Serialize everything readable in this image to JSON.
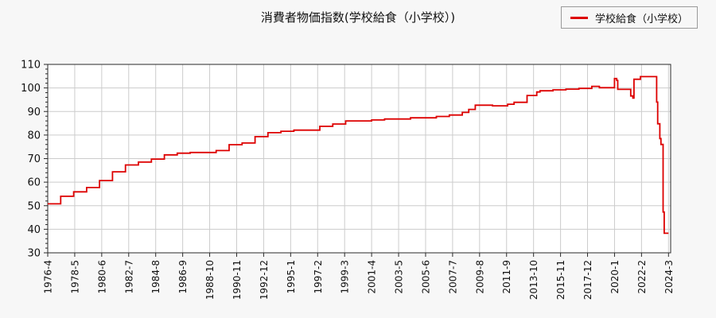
{
  "page": {
    "title": "消費者物価指数(学校給食（小学校）)"
  },
  "legend": {
    "label": "学校給食（小学校）"
  },
  "colors": {
    "line": "#dd0000",
    "grid": "#cccccc",
    "spine": "#2a2a2a",
    "tick": "#2a2a2a",
    "plot_bg": "#ffffff",
    "page_bg": "#f7f7f7",
    "legend_border": "#9a9a9a",
    "text": "#111111"
  },
  "chart_data": {
    "type": "line",
    "line_style": "step-post",
    "title": "消費者物価指数(学校給食（小学校）)",
    "legend_entries": [
      "学校給食（小学校）"
    ],
    "xlabel": "",
    "ylabel": "",
    "grid": true,
    "legend_position": "top-right",
    "ylim": [
      30,
      110
    ],
    "xlim": [
      "1976-4",
      "2024-3"
    ],
    "y_ticks": [
      30,
      40,
      50,
      60,
      70,
      80,
      90,
      100,
      110
    ],
    "y_minor_tick_step": 2,
    "x_ticks": [
      "1976-4",
      "1978-5",
      "1980-6",
      "1982-7",
      "1984-8",
      "1986-9",
      "1988-10",
      "1990-11",
      "1992-12",
      "1995-1",
      "1997-2",
      "1999-3",
      "2001-4",
      "2003-5",
      "2005-6",
      "2007-7",
      "2009-8",
      "2011-9",
      "2013-10",
      "2015-11",
      "2017-12",
      "2020-1",
      "2022-2",
      "2024-3"
    ],
    "series": [
      {
        "name": "学校給食（小学校）",
        "end": "2024-3",
        "points": [
          [
            "1976-4",
            50.8
          ],
          [
            "1977-4",
            54.0
          ],
          [
            "1978-4",
            55.9
          ],
          [
            "1979-4",
            57.7
          ],
          [
            "1980-4",
            60.7
          ],
          [
            "1981-4",
            64.4
          ],
          [
            "1982-4",
            67.3
          ],
          [
            "1983-4",
            68.5
          ],
          [
            "1984-4",
            69.8
          ],
          [
            "1985-4",
            71.6
          ],
          [
            "1986-4",
            72.3
          ],
          [
            "1987-4",
            72.6
          ],
          [
            "1989-4",
            73.4
          ],
          [
            "1990-4",
            75.9
          ],
          [
            "1991-4",
            76.6
          ],
          [
            "1992-4",
            79.3
          ],
          [
            "1993-4",
            81.0
          ],
          [
            "1994-4",
            81.6
          ],
          [
            "1995-4",
            82.1
          ],
          [
            "1997-4",
            83.7
          ],
          [
            "1998-4",
            84.7
          ],
          [
            "1999-4",
            86.0
          ],
          [
            "2001-4",
            86.4
          ],
          [
            "2002-4",
            86.8
          ],
          [
            "2004-4",
            87.3
          ],
          [
            "2006-4",
            87.9
          ],
          [
            "2007-4",
            88.5
          ],
          [
            "2008-4",
            89.6
          ],
          [
            "2008-10",
            90.9
          ],
          [
            "2009-4",
            92.7
          ],
          [
            "2010-8",
            92.4
          ],
          [
            "2011-10",
            93.1
          ],
          [
            "2012-4",
            93.9
          ],
          [
            "2013-4",
            96.8
          ],
          [
            "2014-1",
            98.3
          ],
          [
            "2014-4",
            98.8
          ],
          [
            "2015-4",
            99.2
          ],
          [
            "2016-4",
            99.5
          ],
          [
            "2017-4",
            99.8
          ],
          [
            "2018-4",
            100.7
          ],
          [
            "2018-11",
            100.1
          ],
          [
            "2020-1",
            104.0
          ],
          [
            "2020-3",
            103.2
          ],
          [
            "2020-4",
            99.4
          ],
          [
            "2021-4",
            96.6
          ],
          [
            "2021-6",
            95.7
          ],
          [
            "2021-7",
            103.7
          ],
          [
            "2022-1",
            104.8
          ],
          [
            "2023-4",
            94.0
          ],
          [
            "2023-5",
            84.8
          ],
          [
            "2023-7",
            78.5
          ],
          [
            "2023-8",
            76.0
          ],
          [
            "2023-10",
            47.3
          ],
          [
            "2023-11",
            38.3
          ]
        ]
      }
    ]
  }
}
